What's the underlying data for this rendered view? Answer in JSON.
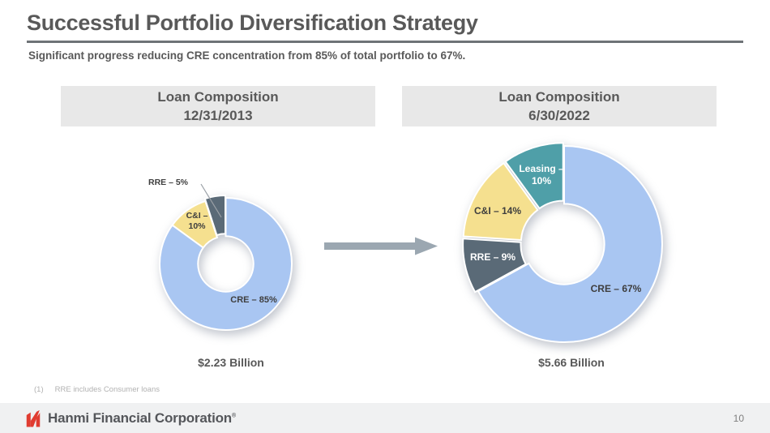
{
  "slide": {
    "title": "Successful Portfolio Diversification Strategy",
    "subtitle": "Significant progress reducing CRE concentration from 85% of total portfolio to 67%.",
    "footnote": {
      "marker": "(1)",
      "text": "RRE includes Consumer loans"
    },
    "footer": {
      "brand": "Hanmi Financial Corporation",
      "trademark": "®",
      "page_number": "10"
    }
  },
  "panels": [
    {
      "header": "Loan Composition\n12/31/2013",
      "total": "$2.23 Billion"
    },
    {
      "header": "Loan Composition\n6/30/2022",
      "total": "$5.66 Billion"
    }
  ],
  "colors": {
    "brand_red": "#e03c31",
    "title_gray": "#595959",
    "rule_gray": "#6e7377",
    "header_box_gray": "#e8e8e8",
    "cre_blue": "#a9c6f2",
    "ci_yellow": "#f5e08f",
    "rre_slate": "#5a6a77",
    "leasing_teal": "#4f9fa8",
    "arrow_gray": "#9ba7b1",
    "footer_bar": "#f0f1f2"
  },
  "chart_data": [
    {
      "type": "pie",
      "subtype": "donut",
      "title": "Loan Composition 12/31/2013",
      "total_label": "$2.23 Billion",
      "direction": "clockwise",
      "start_angle_deg": 0,
      "inner_radius_ratio": 0.42,
      "slices": [
        {
          "category": "CRE",
          "value": 85,
          "label": "CRE – 85%",
          "color": "#a9c6f2",
          "label_style": "dark",
          "offset": 0
        },
        {
          "category": "C&I",
          "value": 10,
          "label": "C&I –\n10%",
          "color": "#f5e08f",
          "label_style": "dark",
          "offset": 0
        },
        {
          "category": "RRE",
          "value": 5,
          "label": "RRE – 5%",
          "color": "#5a6a77",
          "label_style": "outside-leader",
          "offset": 3
        }
      ]
    },
    {
      "type": "pie",
      "subtype": "donut",
      "title": "Loan Composition 6/30/2022",
      "total_label": "$5.66 Billion",
      "direction": "clockwise",
      "start_angle_deg": 0,
      "inner_radius_ratio": 0.41,
      "slices": [
        {
          "category": "CRE",
          "value": 67,
          "label": "CRE – 67%",
          "color": "#a9c6f2",
          "label_style": "dark",
          "offset": 0
        },
        {
          "category": "RRE",
          "value": 9,
          "label": "RRE – 9%",
          "color": "#5a6a77",
          "label_style": "white",
          "offset": 4
        },
        {
          "category": "C&I",
          "value": 14,
          "label": "C&I – 14%",
          "color": "#f5e08f",
          "label_style": "dark",
          "offset": 4
        },
        {
          "category": "Leasing",
          "value": 10,
          "label": "Leasing –\n10%",
          "color": "#4f9fa8",
          "label_style": "white",
          "offset": 4
        }
      ]
    }
  ]
}
